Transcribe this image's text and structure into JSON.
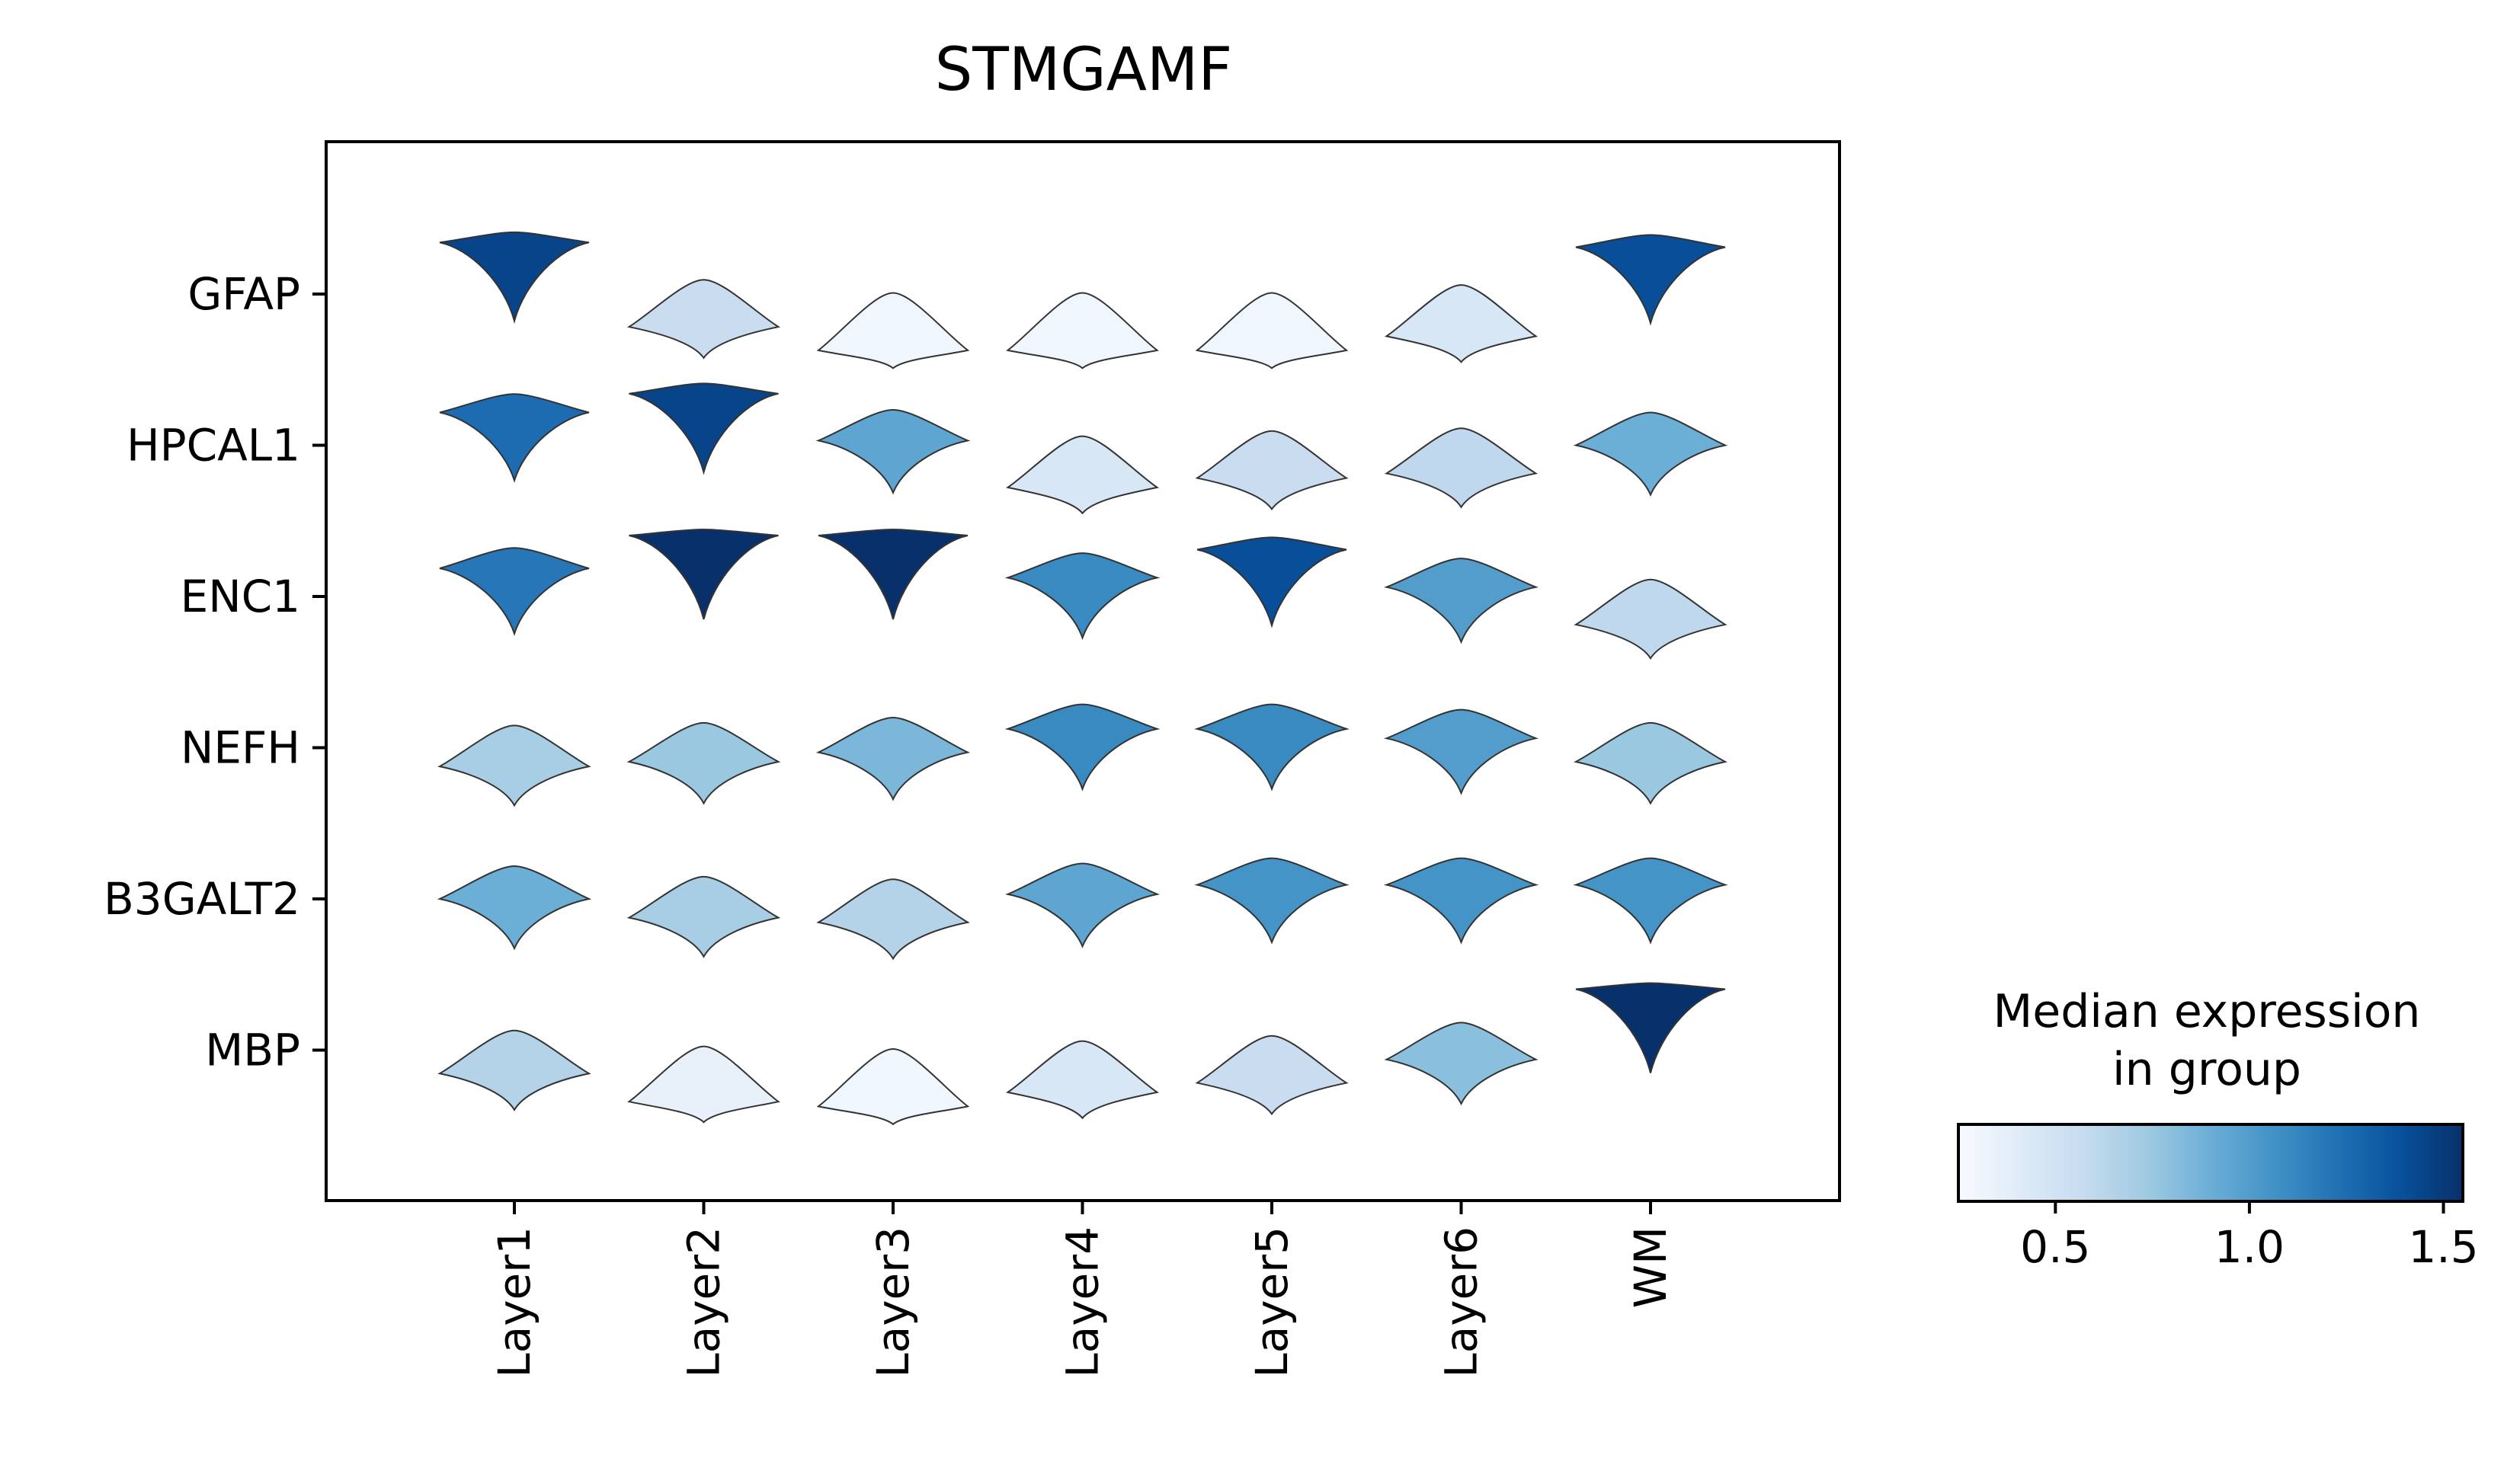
{
  "chart_data": {
    "type": "violin",
    "title": "STMGAMF",
    "xlabel": "",
    "ylabel": "",
    "categories": [
      "Layer1",
      "Layer2",
      "Layer3",
      "Layer4",
      "Layer5",
      "Layer6",
      "WM"
    ],
    "genes": [
      "GFAP",
      "HPCAL1",
      "ENC1",
      "NEFH",
      "B3GALT2",
      "MBP"
    ],
    "median_expression": [
      [
        1.45,
        0.55,
        0.3,
        0.3,
        0.3,
        0.45,
        1.4
      ],
      [
        1.25,
        1.45,
        0.95,
        0.45,
        0.55,
        0.6,
        0.9
      ],
      [
        1.2,
        1.55,
        1.55,
        1.1,
        1.4,
        1.0,
        0.6
      ],
      [
        0.7,
        0.75,
        0.85,
        1.1,
        1.1,
        1.0,
        0.75
      ],
      [
        0.9,
        0.7,
        0.65,
        0.95,
        1.05,
        1.05,
        1.05
      ],
      [
        0.65,
        0.35,
        0.3,
        0.45,
        0.55,
        0.8,
        1.55
      ]
    ],
    "colorbar": {
      "title": "Median expression\nin group",
      "title_line1": "Median expression",
      "title_line2": "in group",
      "range": [
        0.25,
        1.55
      ],
      "ticks": [
        "0.5",
        "1.0",
        "1.5"
      ],
      "tick_values": [
        0.5,
        1.0,
        1.5
      ],
      "colormap": "Blues",
      "colors": [
        "#f7fbff",
        "#deebf7",
        "#c6dbef",
        "#9ecae1",
        "#6baed6",
        "#4292c6",
        "#2171b5",
        "#08519c",
        "#08306b"
      ]
    },
    "outline_color": "#333333"
  }
}
